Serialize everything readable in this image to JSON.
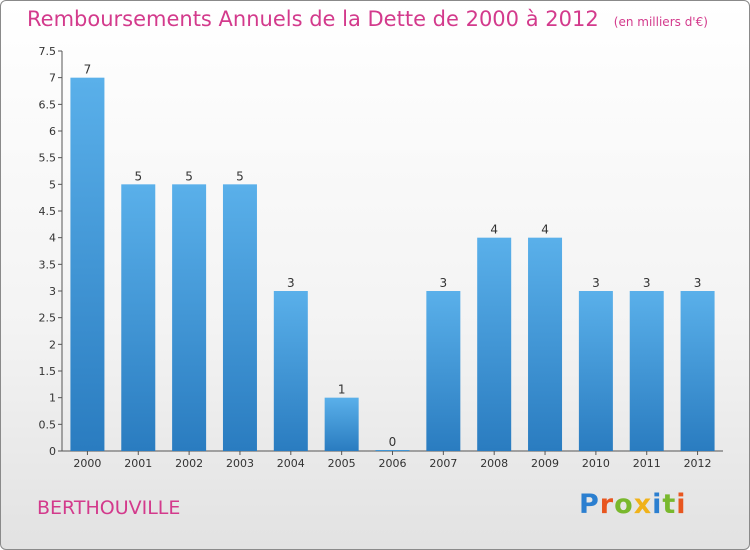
{
  "header": {
    "title": "Remboursements Annuels de la Dette de 2000 à 2012",
    "subtitle": "(en milliers d'€)"
  },
  "footer": {
    "commune": "BERTHOUVILLE",
    "logo_letters": [
      {
        "ch": "P",
        "color": "#2b7fd0"
      },
      {
        "ch": "r",
        "color": "#e8561f"
      },
      {
        "ch": "o",
        "color": "#79b82d"
      },
      {
        "ch": "x",
        "color": "#f0b21a"
      },
      {
        "ch": "i",
        "color": "#2b7fd0"
      },
      {
        "ch": "t",
        "color": "#79b82d"
      },
      {
        "ch": "i",
        "color": "#e8561f"
      }
    ]
  },
  "chart_data": {
    "type": "bar",
    "categories": [
      "2000",
      "2001",
      "2002",
      "2003",
      "2004",
      "2005",
      "2006",
      "2007",
      "2008",
      "2009",
      "2010",
      "2011",
      "2012"
    ],
    "values": [
      7,
      5,
      5,
      5,
      3,
      1,
      0,
      3,
      4,
      4,
      3,
      3,
      3
    ],
    "ylim": [
      0,
      7.5
    ],
    "yticks": [
      0,
      0.5,
      1,
      1.5,
      2,
      2.5,
      3,
      3.5,
      4,
      4.5,
      5,
      5.5,
      6,
      6.5,
      7,
      7.5
    ],
    "grid": false,
    "bar_color_top": "#5ab0ea",
    "bar_color_bottom": "#2a7cc0"
  }
}
